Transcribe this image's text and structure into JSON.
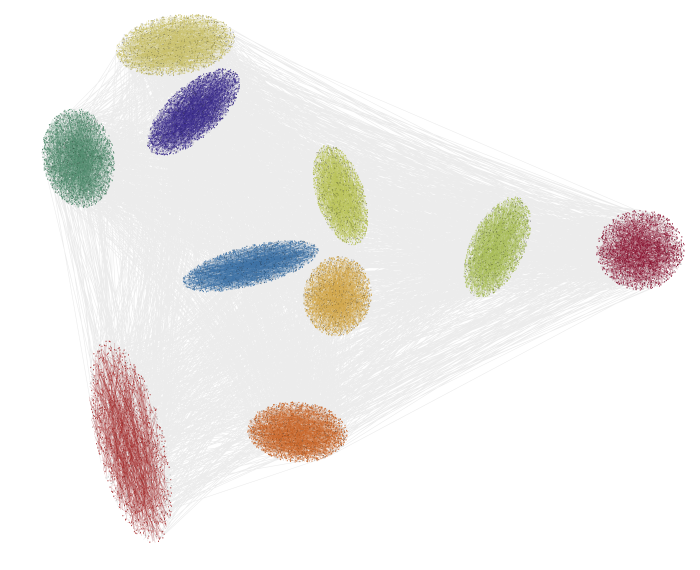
{
  "graph": {
    "clusters": [
      {
        "id": "c-pale-yellow",
        "color": "#c9c06a",
        "density": 0.9
      },
      {
        "id": "c-indigo",
        "color": "#3b2e8c",
        "density": 0.9
      },
      {
        "id": "c-teal",
        "color": "#4f8a6c",
        "density": 0.9
      },
      {
        "id": "c-lime-center",
        "color": "#b9c35a",
        "density": 0.85
      },
      {
        "id": "c-steel-blue",
        "color": "#3f73a6",
        "density": 0.85
      },
      {
        "id": "c-gold",
        "color": "#d0a64a",
        "density": 0.85
      },
      {
        "id": "c-lime-right",
        "color": "#a8bd58",
        "density": 0.85
      },
      {
        "id": "c-crimson",
        "color": "#8a1432",
        "density": 0.6
      },
      {
        "id": "c-red-mesh",
        "color": "#a32b2b",
        "density": 0.55
      },
      {
        "id": "c-orange",
        "color": "#c8662a",
        "density": 0.9
      }
    ],
    "edge_color": "#2b2b2b"
  }
}
